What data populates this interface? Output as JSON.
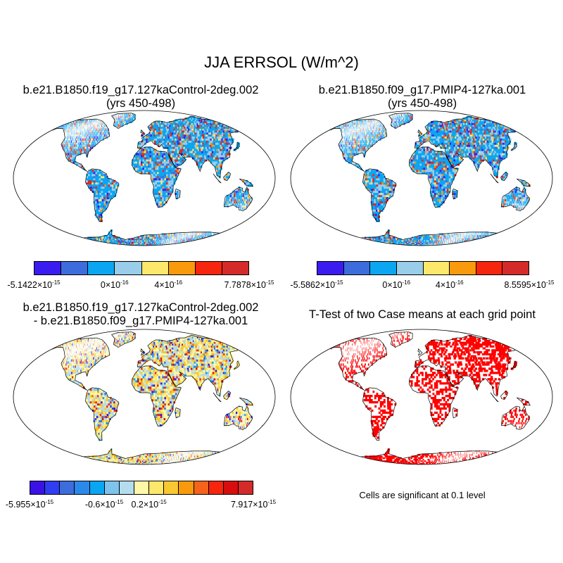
{
  "main_title": "JJA ERRSOL (W/m^2)",
  "panels": [
    {
      "title_line1": "b.e21.B1850.f19_g17.127kaControl-2deg.002",
      "title_line2": "(yrs 450-498)",
      "kind": "field",
      "colorbar": {
        "colors": [
          "#3a1cf0",
          "#3d6ddd",
          "#0aa6f2",
          "#99cdea",
          "#fde86b",
          "#f99a0c",
          "#f6250e",
          "#d52a2a"
        ],
        "labels": [
          {
            "mantissa": "-5.1422",
            "exp": "-15"
          },
          {
            "mantissa": "0",
            "exp": "-16"
          },
          {
            "mantissa": "4",
            "exp": "-16"
          },
          {
            "mantissa": "7.7878",
            "exp": "-15"
          }
        ]
      }
    },
    {
      "title_line1": "b.e21.B1850.f09_g17.PMIP4-127ka.001",
      "title_line2": "(yrs 450-498)",
      "kind": "field",
      "colorbar": {
        "colors": [
          "#3a1cf0",
          "#3d6ddd",
          "#0aa6f2",
          "#99cdea",
          "#fde86b",
          "#f99a0c",
          "#f6250e",
          "#d52a2a"
        ],
        "labels": [
          {
            "mantissa": "-5.5862",
            "exp": "-15"
          },
          {
            "mantissa": "0",
            "exp": "-16"
          },
          {
            "mantissa": "4",
            "exp": "-16"
          },
          {
            "mantissa": "8.5595",
            "exp": "-15"
          }
        ]
      }
    },
    {
      "title_line1": "b.e21.B1850.f19_g17.127kaControl-2deg.002",
      "title_line2": "- b.e21.B1850.f09_g17.PMIP4-127ka.001",
      "kind": "diff",
      "colorbar": {
        "colors": [
          "#3a12e6",
          "#2f3ef2",
          "#3d6ddd",
          "#2b89ec",
          "#0aa6f2",
          "#7ec3ec",
          "#b4dbee",
          "#fff8a8",
          "#fde86b",
          "#f8c832",
          "#f99a0c",
          "#f6631a",
          "#f6250e",
          "#d90d0d",
          "#d52a2a"
        ],
        "labels": [
          {
            "mantissa": "-5.955",
            "exp": "-15"
          },
          {
            "mantissa": "-0.6",
            "exp": "-15"
          },
          {
            "mantissa": "0.2",
            "exp": "-15"
          },
          {
            "mantissa": "7.917",
            "exp": "-15"
          }
        ]
      }
    },
    {
      "title_line1": "T-Test of two Case means at each grid point",
      "title_line2": "",
      "kind": "ttest",
      "note": "Cells are significant at 0.1 level",
      "significant_color": "#ff0000"
    }
  ]
}
